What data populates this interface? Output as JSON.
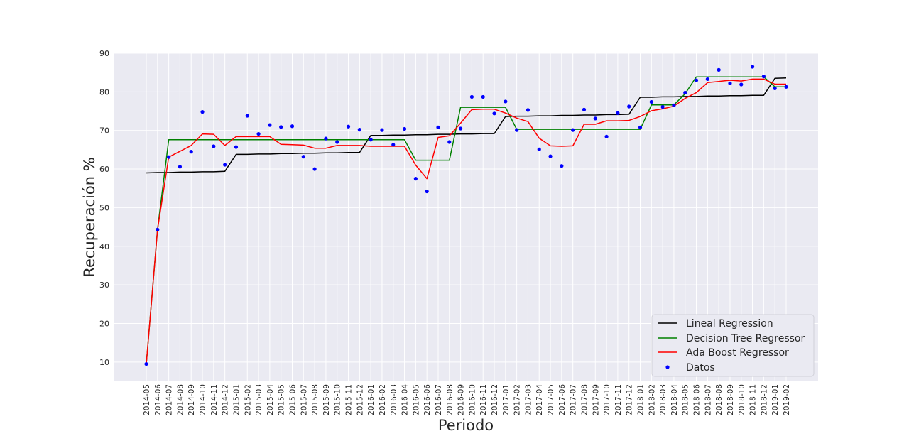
{
  "chart_data": {
    "type": "line",
    "xlabel": "Periodo",
    "ylabel": "Recuperación %",
    "ylim": [
      5,
      90
    ],
    "yticks": [
      10,
      20,
      30,
      40,
      50,
      60,
      70,
      80,
      90
    ],
    "grid": true,
    "legend_position": "bottom-right",
    "categories": [
      "2014-05",
      "2014-06",
      "2014-07",
      "2014-08",
      "2014-09",
      "2014-10",
      "2014-11",
      "2014-12",
      "2015-01",
      "2015-02",
      "2015-03",
      "2015-04",
      "2015-05",
      "2015-06",
      "2015-07",
      "2015-08",
      "2015-09",
      "2015-10",
      "2015-11",
      "2015-12",
      "2016-01",
      "2016-02",
      "2016-03",
      "2016-04",
      "2016-05",
      "2016-06",
      "2016-07",
      "2016-08",
      "2016-09",
      "2016-10",
      "2016-11",
      "2016-12",
      "2017-01",
      "2017-02",
      "2017-03",
      "2017-04",
      "2017-05",
      "2017-06",
      "2017-07",
      "2017-08",
      "2017-09",
      "2017-10",
      "2017-11",
      "2017-12",
      "2018-01",
      "2018-02",
      "2018-03",
      "2018-04",
      "2018-05",
      "2018-06",
      "2018-07",
      "2018-08",
      "2018-09",
      "2018-10",
      "2018-11",
      "2018-12",
      "2019-01",
      "2019-02"
    ],
    "series": [
      {
        "name": "Lineal Regression",
        "kind": "line",
        "color": "#000000",
        "values": [
          59.0,
          59.1,
          59.1,
          59.2,
          59.2,
          59.3,
          59.3,
          59.4,
          63.8,
          63.8,
          63.9,
          63.9,
          64.0,
          64.0,
          64.1,
          64.1,
          64.2,
          64.2,
          64.3,
          64.3,
          68.7,
          68.7,
          68.8,
          68.8,
          68.9,
          68.9,
          69.0,
          69.0,
          69.1,
          69.1,
          69.2,
          69.2,
          73.6,
          73.7,
          73.7,
          73.8,
          73.8,
          73.9,
          73.9,
          74.0,
          74.0,
          74.1,
          74.1,
          74.2,
          78.6,
          78.6,
          78.7,
          78.7,
          78.8,
          78.8,
          78.9,
          78.9,
          79.0,
          79.0,
          79.1,
          79.1,
          83.5,
          83.6
        ]
      },
      {
        "name": "Decision Tree Regressor",
        "kind": "line",
        "color": "#008000",
        "values": [
          9.5,
          44.3,
          67.6,
          67.6,
          67.6,
          67.6,
          67.6,
          67.6,
          67.6,
          67.6,
          67.6,
          67.6,
          67.6,
          67.6,
          67.6,
          67.6,
          67.6,
          67.6,
          67.6,
          67.6,
          67.6,
          67.6,
          67.6,
          67.6,
          62.3,
          62.3,
          62.3,
          62.3,
          76.0,
          76.0,
          76.0,
          76.0,
          76.0,
          70.3,
          70.3,
          70.3,
          70.3,
          70.3,
          70.3,
          70.3,
          70.3,
          70.3,
          70.3,
          70.3,
          70.3,
          76.6,
          76.6,
          76.6,
          79.5,
          83.9,
          83.9,
          83.9,
          83.9,
          83.9,
          83.9,
          83.9,
          81.3,
          81.3
        ]
      },
      {
        "name": "Ada Boost Regressor",
        "kind": "line",
        "color": "#ff0000",
        "values": [
          9.5,
          44.3,
          63.1,
          64.6,
          66.1,
          69.1,
          69.0,
          66.1,
          68.4,
          68.4,
          68.4,
          68.4,
          66.4,
          66.3,
          66.2,
          65.4,
          65.4,
          66.1,
          66.1,
          66.1,
          65.9,
          65.9,
          65.9,
          65.9,
          61.0,
          57.5,
          68.2,
          68.6,
          71.9,
          75.4,
          75.5,
          75.5,
          74.5,
          73.2,
          72.3,
          68.0,
          66.0,
          65.9,
          66.0,
          71.6,
          71.6,
          72.5,
          72.5,
          72.6,
          73.6,
          75.1,
          75.6,
          76.3,
          78.3,
          79.8,
          82.4,
          82.7,
          83.0,
          82.8,
          83.3,
          83.3,
          82.0,
          82.0
        ]
      },
      {
        "name": "Datos",
        "kind": "scatter",
        "color": "#0000ff",
        "values": [
          9.5,
          44.3,
          63.1,
          60.6,
          64.5,
          74.8,
          65.9,
          61.1,
          65.7,
          73.8,
          69.1,
          71.4,
          70.9,
          71.1,
          63.2,
          60.0,
          67.9,
          67.0,
          71.0,
          70.2,
          67.6,
          70.1,
          66.3,
          70.4,
          57.5,
          54.2,
          70.8,
          67.0,
          70.5,
          78.7,
          78.7,
          74.4,
          77.5,
          70.1,
          75.3,
          65.1,
          63.3,
          60.8,
          70.1,
          75.4,
          73.1,
          68.4,
          74.5,
          76.2,
          70.8,
          77.4,
          76.1,
          76.5,
          79.8,
          83.0,
          83.3,
          85.7,
          82.2,
          81.9,
          86.5,
          84.0,
          80.9,
          81.3
        ]
      }
    ]
  }
}
